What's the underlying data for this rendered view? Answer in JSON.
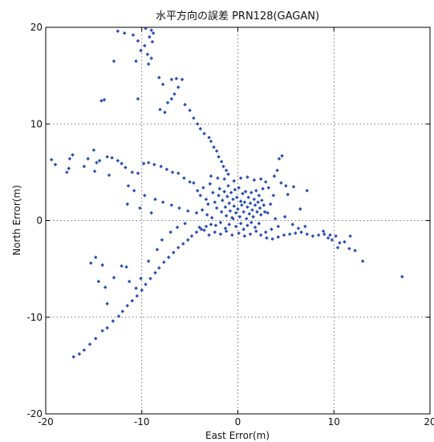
{
  "chart_data": {
    "type": "scatter",
    "title": "水平方向の誤差 PRN128(GAGAN)",
    "xlabel": "East Error(m)",
    "ylabel": "North Error(m)",
    "xlim": [
      -20,
      20
    ],
    "ylim": [
      -20,
      20
    ],
    "xticks": [
      -20,
      -10,
      0,
      10,
      20
    ],
    "yticks": [
      -20,
      -10,
      0,
      10,
      20
    ],
    "xtick_labels": [
      "-20",
      "-10",
      "0",
      "10",
      "20"
    ],
    "ytick_labels": [
      "-20",
      "-10",
      "0",
      "10",
      "20"
    ],
    "grid": true,
    "marker_color": "#2a4fb0",
    "series": [
      {
        "points": [
          [
            -12.5,
            19.6
          ],
          [
            -11.8,
            19.4
          ],
          [
            -10.9,
            19.2
          ],
          [
            -9.6,
            19.9
          ],
          [
            -9.0,
            19.7
          ],
          [
            -8.8,
            19.4
          ],
          [
            -9.2,
            19.0
          ],
          [
            -10.4,
            18.6
          ],
          [
            -9.7,
            18.1
          ],
          [
            -8.9,
            18.5
          ],
          [
            -10.1,
            17.6
          ],
          [
            -9.4,
            17.2
          ],
          [
            -9.0,
            16.8
          ],
          [
            -10.6,
            16.5
          ],
          [
            -9.3,
            16.2
          ],
          [
            -12.9,
            16.5
          ],
          [
            -8.2,
            14.8
          ],
          [
            -7.8,
            14.1
          ],
          [
            -6.9,
            14.6
          ],
          [
            -6.4,
            14.7
          ],
          [
            -5.8,
            14.6
          ],
          [
            -6.2,
            13.8
          ],
          [
            -6.6,
            13.1
          ],
          [
            -6.9,
            12.6
          ],
          [
            -7.3,
            12.2
          ],
          [
            -8.1,
            11.5
          ],
          [
            -7.6,
            11.2
          ],
          [
            -5.5,
            12.0
          ],
          [
            -5.0,
            11.4
          ],
          [
            -4.6,
            10.6
          ],
          [
            -4.2,
            10.0
          ],
          [
            -3.9,
            9.5
          ],
          [
            -3.5,
            9.0
          ],
          [
            -3.0,
            8.6
          ],
          [
            -2.8,
            8.2
          ],
          [
            -2.5,
            7.6
          ],
          [
            -2.2,
            7.2
          ],
          [
            -2.0,
            6.6
          ],
          [
            -1.7,
            6.1
          ],
          [
            -1.5,
            5.6
          ],
          [
            -1.2,
            5.2
          ],
          [
            -1.0,
            4.8
          ],
          [
            -10.4,
            12.6
          ],
          [
            -13.9,
            12.5
          ],
          [
            -14.2,
            12.4
          ],
          [
            -19.4,
            6.3
          ],
          [
            -19.0,
            5.8
          ],
          [
            -17.5,
            6.4
          ],
          [
            -17.2,
            6.8
          ],
          [
            -17.6,
            5.4
          ],
          [
            -17.8,
            5.0
          ],
          [
            -16.0,
            5.6
          ],
          [
            -15.6,
            6.4
          ],
          [
            -15.0,
            7.3
          ],
          [
            -14.7,
            6.0
          ],
          [
            -14.4,
            6.2
          ],
          [
            -13.6,
            6.6
          ],
          [
            -13.1,
            6.5
          ],
          [
            -12.5,
            6.2
          ],
          [
            -12.1,
            5.9
          ],
          [
            -11.7,
            5.5
          ],
          [
            -11.0,
            5.0
          ],
          [
            -10.4,
            4.9
          ],
          [
            -9.8,
            5.9
          ],
          [
            -9.3,
            6.0
          ],
          [
            -8.7,
            5.8
          ],
          [
            -8.0,
            5.6
          ],
          [
            -7.4,
            5.3
          ],
          [
            -6.8,
            5.0
          ],
          [
            -6.2,
            4.9
          ],
          [
            -5.6,
            4.4
          ],
          [
            -5.0,
            4.0
          ],
          [
            -4.6,
            3.9
          ],
          [
            -14.9,
            5.1
          ],
          [
            -13.4,
            4.7
          ],
          [
            -11.4,
            3.6
          ],
          [
            -10.8,
            3.1
          ],
          [
            -9.7,
            2.6
          ],
          [
            -8.6,
            2.2
          ],
          [
            -7.8,
            1.9
          ],
          [
            -6.9,
            1.6
          ],
          [
            -6.1,
            1.3
          ],
          [
            -5.2,
            1.0
          ],
          [
            -4.3,
            0.8
          ],
          [
            -17.1,
            -14.1
          ],
          [
            -16.5,
            -13.8
          ],
          [
            -16.0,
            -13.4
          ],
          [
            -15.4,
            -12.8
          ],
          [
            -14.8,
            -12.2
          ],
          [
            -14.1,
            -11.4
          ],
          [
            -13.6,
            -11.1
          ],
          [
            -13.0,
            -10.4
          ],
          [
            -12.4,
            -9.9
          ],
          [
            -12.0,
            -9.4
          ],
          [
            -11.5,
            -8.8
          ],
          [
            -11.0,
            -8.3
          ],
          [
            -10.5,
            -7.8
          ],
          [
            -10.0,
            -7.2
          ],
          [
            -9.6,
            -6.6
          ],
          [
            -9.1,
            -6.0
          ],
          [
            -8.6,
            -5.4
          ],
          [
            -8.2,
            -4.9
          ],
          [
            -7.7,
            -4.3
          ],
          [
            -7.2,
            -3.8
          ],
          [
            -6.7,
            -3.3
          ],
          [
            -6.2,
            -2.8
          ],
          [
            -5.7,
            -2.4
          ],
          [
            -5.2,
            -2.0
          ],
          [
            -4.8,
            -1.6
          ],
          [
            -4.3,
            -1.2
          ],
          [
            -3.8,
            -0.9
          ],
          [
            -3.3,
            -0.6
          ],
          [
            -2.8,
            -0.4
          ],
          [
            -15.3,
            -4.4
          ],
          [
            -14.8,
            -3.8
          ],
          [
            -14.1,
            -4.6
          ],
          [
            -14.5,
            -6.3
          ],
          [
            -13.8,
            -6.9
          ],
          [
            -13.6,
            -8.6
          ],
          [
            -12.9,
            -5.9
          ],
          [
            -12.1,
            -4.7
          ],
          [
            -11.6,
            -4.8
          ],
          [
            -11.3,
            -6.3
          ],
          [
            -10.6,
            -7.0
          ],
          [
            -10.1,
            -6.0
          ],
          [
            -9.3,
            -4.2
          ],
          [
            -8.4,
            -3.0
          ],
          [
            -7.9,
            -2.0
          ],
          [
            -7.0,
            -1.2
          ],
          [
            -6.3,
            -0.7
          ],
          [
            -5.5,
            -0.3
          ],
          [
            -11.5,
            1.7
          ],
          [
            -10.2,
            1.3
          ],
          [
            -9.0,
            0.8
          ],
          [
            -4.2,
            3.1
          ],
          [
            -3.9,
            2.6
          ],
          [
            -3.6,
            3.4
          ],
          [
            -3.3,
            2.2
          ],
          [
            -3.1,
            1.7
          ],
          [
            -2.9,
            3.8
          ],
          [
            -2.6,
            2.9
          ],
          [
            -2.4,
            1.9
          ],
          [
            -2.2,
            1.3
          ],
          [
            -2.0,
            2.6
          ],
          [
            -1.9,
            3.3
          ],
          [
            -1.7,
            0.9
          ],
          [
            -1.6,
            2.1
          ],
          [
            -1.4,
            3.0
          ],
          [
            -1.3,
            1.4
          ],
          [
            -1.2,
            0.5
          ],
          [
            -1.1,
            2.5
          ],
          [
            -1.0,
            3.6
          ],
          [
            -0.9,
            1.8
          ],
          [
            -0.8,
            1.0
          ],
          [
            -0.7,
            2.9
          ],
          [
            -0.6,
            0.3
          ],
          [
            -0.5,
            2.2
          ],
          [
            -0.4,
            1.5
          ],
          [
            -0.3,
            3.2
          ],
          [
            -0.2,
            0.8
          ],
          [
            -0.1,
            2.4
          ],
          [
            0.0,
            1.2
          ],
          [
            0.1,
            3.4
          ],
          [
            0.2,
            0.4
          ],
          [
            0.3,
            2.0
          ],
          [
            0.4,
            1.6
          ],
          [
            0.5,
            2.8
          ],
          [
            0.6,
            0.9
          ],
          [
            0.7,
            1.9
          ],
          [
            0.8,
            3.0
          ],
          [
            0.9,
            0.2
          ],
          [
            1.0,
            1.4
          ],
          [
            1.1,
            2.4
          ],
          [
            1.2,
            0.7
          ],
          [
            1.3,
            1.8
          ],
          [
            1.4,
            2.9
          ],
          [
            1.5,
            1.1
          ],
          [
            1.6,
            0.4
          ],
          [
            1.7,
            2.2
          ],
          [
            1.8,
            1.6
          ],
          [
            1.9,
            3.1
          ],
          [
            2.0,
            0.9
          ],
          [
            2.1,
            1.9
          ],
          [
            2.2,
            2.6
          ],
          [
            2.3,
            1.3
          ],
          [
            2.4,
            0.6
          ],
          [
            2.5,
            2.1
          ],
          [
            2.6,
            3.3
          ],
          [
            2.7,
            1.6
          ],
          [
            2.8,
            0.9
          ],
          [
            -0.5,
            0.2
          ],
          [
            -0.9,
            -0.4
          ],
          [
            -1.3,
            -0.8
          ],
          [
            -0.2,
            -0.6
          ],
          [
            0.3,
            -0.3
          ],
          [
            0.6,
            -0.9
          ],
          [
            1.0,
            -0.5
          ],
          [
            1.4,
            -0.2
          ],
          [
            1.8,
            -0.7
          ],
          [
            2.2,
            -0.3
          ],
          [
            -1.8,
            -0.2
          ],
          [
            -2.3,
            -0.5
          ],
          [
            -2.7,
            0.3
          ],
          [
            -3.2,
            0.6
          ],
          [
            -3.7,
            1.1
          ],
          [
            3.1,
            0.8
          ],
          [
            3.4,
            1.7
          ],
          [
            3.7,
            2.6
          ],
          [
            3.2,
            3.4
          ],
          [
            2.9,
            4.0
          ],
          [
            2.4,
            4.3
          ],
          [
            1.7,
            4.2
          ],
          [
            1.0,
            4.5
          ],
          [
            0.3,
            4.4
          ],
          [
            -0.4,
            4.1
          ],
          [
            -1.4,
            4.3
          ],
          [
            -2.1,
            4.4
          ],
          [
            -2.8,
            4.6
          ],
          [
            3.9,
            0.2
          ],
          [
            4.2,
            -0.6
          ],
          [
            3.5,
            -0.9
          ],
          [
            2.9,
            -1.2
          ],
          [
            2.4,
            -1.5
          ],
          [
            1.9,
            -1.1
          ],
          [
            1.3,
            -1.4
          ],
          [
            0.7,
            -1.6
          ],
          [
            0.1,
            -1.3
          ],
          [
            -0.6,
            -1.5
          ],
          [
            -1.2,
            -1.1
          ],
          [
            -1.8,
            -1.4
          ],
          [
            -2.4,
            -1.2
          ],
          [
            -3.0,
            -1.5
          ],
          [
            -3.5,
            -1.0
          ],
          [
            -4.0,
            -0.7
          ],
          [
            3.0,
            -1.8
          ],
          [
            3.6,
            -1.9
          ],
          [
            4.2,
            -1.7
          ],
          [
            4.8,
            -1.5
          ],
          [
            5.4,
            -1.4
          ],
          [
            6.0,
            -1.3
          ],
          [
            6.6,
            -1.2
          ],
          [
            7.2,
            -1.4
          ],
          [
            7.8,
            -1.6
          ],
          [
            8.4,
            -1.5
          ],
          [
            9.0,
            -1.4
          ],
          [
            9.4,
            -1.8
          ],
          [
            9.8,
            -2.0
          ],
          [
            10.2,
            -1.6
          ],
          [
            10.6,
            -2.3
          ],
          [
            11.1,
            -2.2
          ],
          [
            11.6,
            -2.9
          ],
          [
            12.2,
            -3.1
          ],
          [
            13.0,
            -4.2
          ],
          [
            11.7,
            -1.6
          ],
          [
            10.4,
            -2.8
          ],
          [
            17.1,
            -5.8
          ],
          [
            8.9,
            -1.1
          ],
          [
            9.6,
            -1.5
          ],
          [
            4.6,
            6.7
          ],
          [
            4.3,
            6.4
          ],
          [
            5.8,
            3.5
          ],
          [
            7.2,
            3.1
          ],
          [
            5.2,
            2.7
          ],
          [
            6.5,
            1.2
          ],
          [
            4.9,
            0.4
          ],
          [
            5.7,
            -0.4
          ],
          [
            6.3,
            -0.8
          ],
          [
            7.0,
            -0.6
          ],
          [
            4.5,
            3.9
          ],
          [
            5.0,
            3.6
          ],
          [
            3.8,
            4.6
          ],
          [
            4.1,
            5.2
          ]
        ]
      }
    ]
  }
}
